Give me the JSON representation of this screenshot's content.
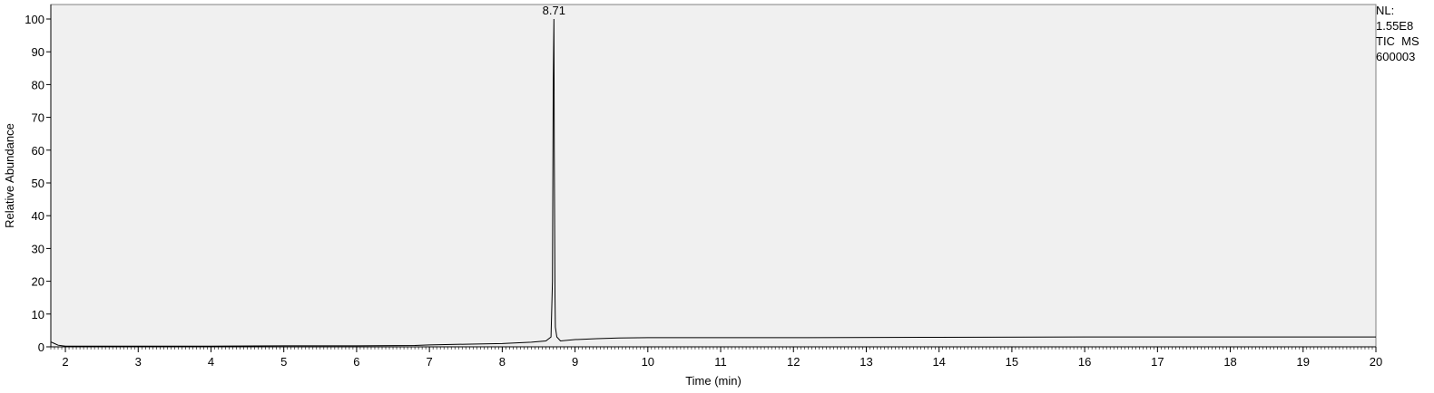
{
  "chart_data": {
    "type": "line",
    "xlabel": "Time (min)",
    "ylabel": "Relative Abundance",
    "xlim": [
      1.8,
      20
    ],
    "ylim": [
      0,
      100
    ],
    "x_ticks": [
      2,
      3,
      4,
      5,
      6,
      7,
      8,
      9,
      10,
      11,
      12,
      13,
      14,
      15,
      16,
      17,
      18,
      19,
      20
    ],
    "y_ticks": [
      0,
      10,
      20,
      30,
      40,
      50,
      60,
      70,
      80,
      90,
      100
    ],
    "grid": false,
    "plot_background": "#f0f0f0",
    "line_color": "#000000",
    "annotations": [
      {
        "label": "8.71",
        "x": 8.71,
        "y": 100
      }
    ],
    "info_box": {
      "lines": [
        "NL:",
        "1.55E8",
        "TIC  MS",
        "600003"
      ]
    },
    "series": [
      {
        "x": [
          1.8,
          1.85,
          1.9,
          2.0,
          3.0,
          4.0,
          5.0,
          5.5,
          6.0,
          6.8,
          7.0,
          7.5,
          8.0,
          8.4,
          8.6,
          8.67,
          8.69,
          8.7,
          8.705,
          8.71,
          8.715,
          8.72,
          8.725,
          8.73,
          8.75,
          8.8,
          9.0,
          9.3,
          9.6,
          10.0,
          12.0,
          14.0,
          16.0,
          18.0,
          20.0
        ],
        "y": [
          1.5,
          1.0,
          0.5,
          0.2,
          0.2,
          0.2,
          0.3,
          0.3,
          0.3,
          0.4,
          0.6,
          0.8,
          1.0,
          1.4,
          1.8,
          3.0,
          20.0,
          78.0,
          90.0,
          100.0,
          60.0,
          37.0,
          15.0,
          6.0,
          3.0,
          1.8,
          2.2,
          2.5,
          2.7,
          2.8,
          2.8,
          2.9,
          3.0,
          3.0,
          3.0
        ]
      }
    ]
  }
}
